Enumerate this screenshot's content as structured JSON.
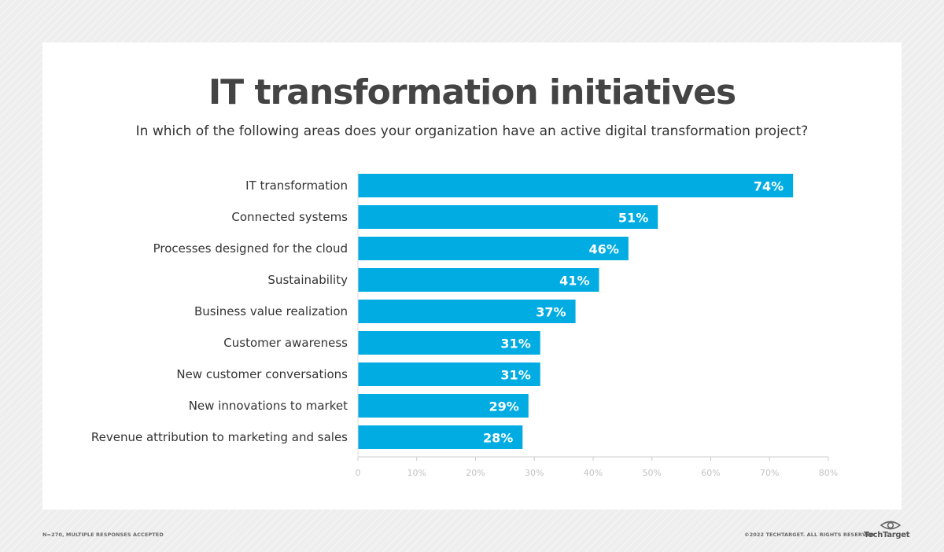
{
  "chart_data": {
    "type": "bar",
    "orientation": "horizontal",
    "title": "IT transformation initiatives",
    "subtitle": "In which of the following areas does your organization have an active digital transformation project?",
    "categories": [
      "IT transformation",
      "Connected systems",
      "Processes designed for the cloud",
      "Sustainability",
      "Business value realization",
      "Customer awareness",
      "New customer conversations",
      "New innovations to market",
      "Revenue attribution to marketing and sales"
    ],
    "values": [
      74,
      51,
      46,
      41,
      37,
      31,
      31,
      29,
      28
    ],
    "value_labels": [
      "74%",
      "51%",
      "46%",
      "41%",
      "37%",
      "31%",
      "31%",
      "29%",
      "28%"
    ],
    "xlim": [
      0,
      80
    ],
    "x_ticks": [
      "0",
      "10%",
      "20%",
      "30%",
      "40%",
      "50%",
      "60%",
      "70%",
      "80%"
    ],
    "bar_color": "#00ace2",
    "grid": false
  },
  "footer": {
    "note": "N=270, MULTIPLE RESPONSES ACCEPTED",
    "copyright": "©2022 TECHTARGET. ALL RIGHTS RESERVED",
    "brand": "TechTarget"
  },
  "colors": {
    "bar": "#00ace2",
    "title": "#444444",
    "axis": "#cccccc",
    "background": "#eeeeee"
  }
}
